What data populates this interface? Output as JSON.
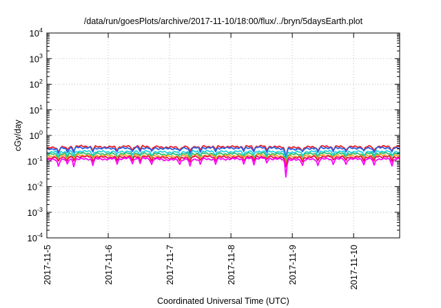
{
  "chart_data": {
    "type": "line",
    "title": "/data/run/goesPlots/archive/2017-11-10/18:00/flux/../bryn/5daysEarth.plot",
    "xlabel": "Coordinated Universal Time (UTC)",
    "ylabel": "cGy/day",
    "yscale": "log",
    "ylim": [
      0.0001,
      10000
    ],
    "xlim": [
      "2017-11-05T00:00",
      "2017-11-10T18:00"
    ],
    "grid": true,
    "x_ticks": [
      "2017-11-5",
      "2017-11-6",
      "2017-11-7",
      "2017-11-8",
      "2017-11-9",
      "2017-11-10"
    ],
    "y_ticks": [
      {
        "base": "10",
        "exp": "-4",
        "value": 0.0001
      },
      {
        "base": "10",
        "exp": "-3",
        "value": 0.001
      },
      {
        "base": "10",
        "exp": "-2",
        "value": 0.01
      },
      {
        "base": "10",
        "exp": "-1",
        "value": 0.1
      },
      {
        "base": "10",
        "exp": "0",
        "value": 1
      },
      {
        "base": "10",
        "exp": "1",
        "value": 10
      },
      {
        "base": "10",
        "exp": "2",
        "value": 100
      },
      {
        "base": "10",
        "exp": "3",
        "value": 1000
      },
      {
        "base": "10",
        "exp": "4",
        "value": 10000
      }
    ],
    "series": [
      {
        "color": "#e8202a",
        "base": 0.36,
        "points": [
          [
            "2017-11-05T00:00",
            0.32
          ],
          [
            "2017-11-05T12:00",
            0.38
          ],
          [
            "2017-11-06T00:00",
            0.35
          ],
          [
            "2017-11-06T12:00",
            0.38
          ],
          [
            "2017-11-07T00:00",
            0.34
          ],
          [
            "2017-11-07T12:00",
            0.37
          ],
          [
            "2017-11-08T00:00",
            0.36
          ],
          [
            "2017-11-08T12:00",
            0.38
          ],
          [
            "2017-11-09T00:00",
            0.33
          ],
          [
            "2017-11-09T12:00",
            0.37
          ],
          [
            "2017-11-10T00:00",
            0.36
          ],
          [
            "2017-11-10T12:00",
            0.37
          ],
          [
            "2017-11-10T18:00",
            0.36
          ]
        ]
      },
      {
        "color": "#2a5fe0",
        "base": 0.32,
        "points": [
          [
            "2017-11-05T00:00",
            0.29
          ],
          [
            "2017-11-05T12:00",
            0.34
          ],
          [
            "2017-11-06T00:00",
            0.31
          ],
          [
            "2017-11-06T12:00",
            0.33
          ],
          [
            "2017-11-07T00:00",
            0.3
          ],
          [
            "2017-11-07T12:00",
            0.33
          ],
          [
            "2017-11-08T00:00",
            0.32
          ],
          [
            "2017-11-08T12:00",
            0.34
          ],
          [
            "2017-11-09T00:00",
            0.29
          ],
          [
            "2017-11-09T12:00",
            0.33
          ],
          [
            "2017-11-10T00:00",
            0.32
          ],
          [
            "2017-11-10T12:00",
            0.33
          ],
          [
            "2017-11-10T18:00",
            0.32
          ]
        ]
      },
      {
        "color": "#20d0e0",
        "base": 0.23,
        "points": [
          [
            "2017-11-05T00:00",
            0.22
          ],
          [
            "2017-11-05T12:00",
            0.24
          ],
          [
            "2017-11-06T00:00",
            0.23
          ],
          [
            "2017-11-06T12:00",
            0.24
          ],
          [
            "2017-11-07T00:00",
            0.22
          ],
          [
            "2017-11-07T12:00",
            0.24
          ],
          [
            "2017-11-08T00:00",
            0.23
          ],
          [
            "2017-11-08T12:00",
            0.24
          ],
          [
            "2017-11-09T00:00",
            0.22
          ],
          [
            "2017-11-09T12:00",
            0.24
          ],
          [
            "2017-11-10T00:00",
            0.23
          ],
          [
            "2017-11-10T12:00",
            0.24
          ],
          [
            "2017-11-10T18:00",
            0.23
          ]
        ]
      },
      {
        "color": "#30c070",
        "base": 0.19,
        "points": [
          [
            "2017-11-05T00:00",
            0.18
          ],
          [
            "2017-11-05T12:00",
            0.2
          ],
          [
            "2017-11-06T00:00",
            0.19
          ],
          [
            "2017-11-06T12:00",
            0.2
          ],
          [
            "2017-11-07T00:00",
            0.18
          ],
          [
            "2017-11-07T12:00",
            0.2
          ],
          [
            "2017-11-08T00:00",
            0.19
          ],
          [
            "2017-11-08T12:00",
            0.2
          ],
          [
            "2017-11-09T00:00",
            0.18
          ],
          [
            "2017-11-09T12:00",
            0.2
          ],
          [
            "2017-11-10T00:00",
            0.19
          ],
          [
            "2017-11-10T12:00",
            0.2
          ],
          [
            "2017-11-10T18:00",
            0.19
          ]
        ]
      },
      {
        "color": "#f0a030",
        "base": 0.16,
        "points": [
          [
            "2017-11-05T00:00",
            0.15
          ],
          [
            "2017-11-05T12:00",
            0.17
          ],
          [
            "2017-11-06T00:00",
            0.16
          ],
          [
            "2017-11-06T12:00",
            0.17
          ],
          [
            "2017-11-07T00:00",
            0.15
          ],
          [
            "2017-11-07T12:00",
            0.17
          ],
          [
            "2017-11-08T00:00",
            0.16
          ],
          [
            "2017-11-08T12:00",
            0.17
          ],
          [
            "2017-11-09T00:00",
            0.15
          ],
          [
            "2017-11-09T12:00",
            0.17
          ],
          [
            "2017-11-10T00:00",
            0.16
          ],
          [
            "2017-11-10T12:00",
            0.17
          ],
          [
            "2017-11-10T18:00",
            0.16
          ]
        ]
      },
      {
        "color": "#e81050",
        "base": 0.14,
        "points": [
          [
            "2017-11-05T00:00",
            0.13
          ],
          [
            "2017-11-05T12:00",
            0.15
          ],
          [
            "2017-11-06T00:00",
            0.14
          ],
          [
            "2017-11-06T12:00",
            0.15
          ],
          [
            "2017-11-07T00:00",
            0.13
          ],
          [
            "2017-11-07T12:00",
            0.15
          ],
          [
            "2017-11-08T00:00",
            0.14
          ],
          [
            "2017-11-08T12:00",
            0.15
          ],
          [
            "2017-11-09T00:00",
            0.13
          ],
          [
            "2017-11-09T12:00",
            0.15
          ],
          [
            "2017-11-10T00:00",
            0.14
          ],
          [
            "2017-11-10T12:00",
            0.15
          ],
          [
            "2017-11-10T18:00",
            0.14
          ]
        ]
      },
      {
        "color": "#ff00ff",
        "base": 0.12,
        "points": [
          [
            "2017-11-05T00:00",
            0.11
          ],
          [
            "2017-11-05T12:00",
            0.12
          ],
          [
            "2017-11-06T00:00",
            0.12
          ],
          [
            "2017-11-06T12:00",
            0.13
          ],
          [
            "2017-11-07T00:00",
            0.11
          ],
          [
            "2017-11-07T12:00",
            0.12
          ],
          [
            "2017-11-08T00:00",
            0.12
          ],
          [
            "2017-11-08T12:00",
            0.13
          ],
          [
            "2017-11-09T00:00",
            0.11
          ],
          [
            "2017-11-09T12:00",
            0.12
          ],
          [
            "2017-11-10T00:00",
            0.12
          ],
          [
            "2017-11-10T12:00",
            0.12
          ],
          [
            "2017-11-10T18:00",
            0.12
          ]
        ]
      }
    ],
    "dips": [
      {
        "t": "2017-11-05T04:30",
        "factor": 0.55
      },
      {
        "t": "2017-11-05T08:00",
        "factor": 0.6
      },
      {
        "t": "2017-11-05T10:30",
        "factor": 0.55
      },
      {
        "t": "2017-11-05T18:00",
        "factor": 0.6
      },
      {
        "t": "2017-11-06T03:30",
        "factor": 0.65
      },
      {
        "t": "2017-11-06T09:30",
        "factor": 0.6
      },
      {
        "t": "2017-11-06T12:30",
        "factor": 0.65
      },
      {
        "t": "2017-11-06T17:00",
        "factor": 0.6
      },
      {
        "t": "2017-11-07T04:00",
        "factor": 0.65
      },
      {
        "t": "2017-11-07T08:00",
        "factor": 0.5
      },
      {
        "t": "2017-11-07T12:00",
        "factor": 0.6
      },
      {
        "t": "2017-11-07T18:00",
        "factor": 0.65
      },
      {
        "t": "2017-11-08T05:00",
        "factor": 0.65
      },
      {
        "t": "2017-11-08T09:00",
        "factor": 0.6
      },
      {
        "t": "2017-11-08T14:00",
        "factor": 0.65
      },
      {
        "t": "2017-11-08T21:30",
        "factor": 0.22
      },
      {
        "t": "2017-11-09T04:00",
        "factor": 0.6
      },
      {
        "t": "2017-11-09T10:00",
        "factor": 0.55
      },
      {
        "t": "2017-11-09T16:00",
        "factor": 0.65
      },
      {
        "t": "2017-11-09T21:00",
        "factor": 0.6
      },
      {
        "t": "2017-11-10T04:00",
        "factor": 0.6
      },
      {
        "t": "2017-11-10T08:00",
        "factor": 0.55
      },
      {
        "t": "2017-11-10T15:00",
        "factor": 0.55
      }
    ]
  }
}
